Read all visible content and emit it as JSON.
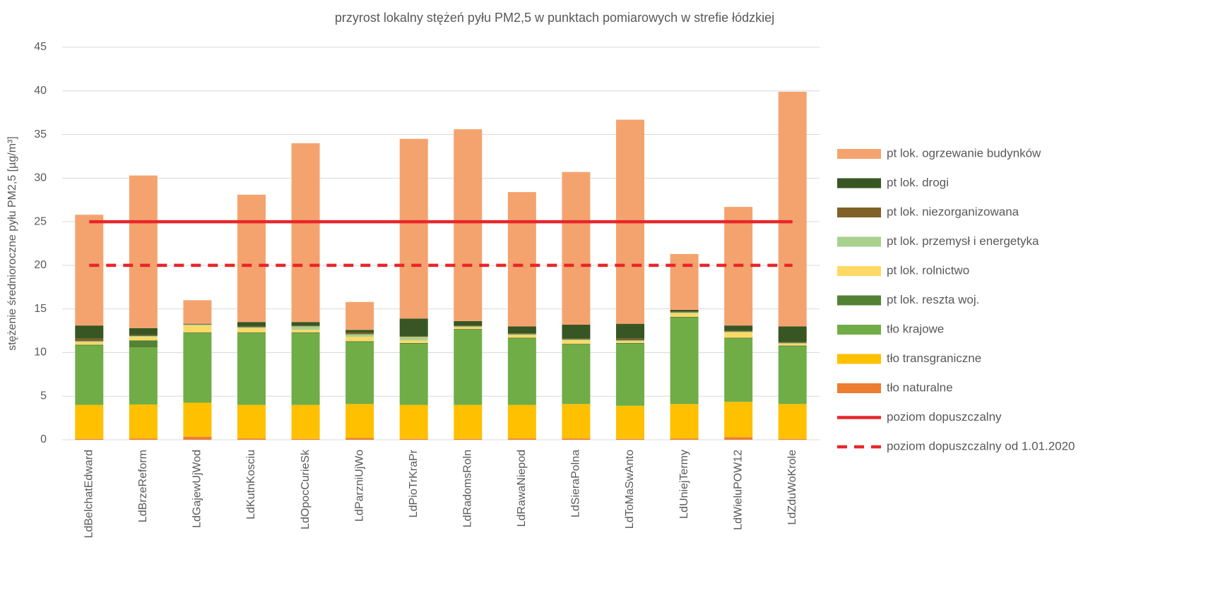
{
  "chart_data": {
    "type": "stacked_bar",
    "title": "przyrost lokalny stężeń pyłu PM2,5 w punktach pomiarowych w strefie łódzkiej",
    "y_label": "stężenie średnioroczne pyłu PM2,5 [µg/m³]",
    "categories": [
      "LdBelchatEdward",
      "LdBrzeReform",
      "LdGajewUjWod",
      "LdKutnKosciu",
      "LdOpocCurieSk",
      "LdParzniUjWo",
      "LdPioTrKraPr",
      "LdRadomsRoln",
      "LdRawaNiepod",
      "LdSieraPolna",
      "LdToMaSwAnto",
      "LdUniejTermy",
      "LdWieluPOW12",
      "LdZduWoKrole"
    ],
    "series": [
      {
        "name": "tło naturalne",
        "color": "#ed7d31",
        "values": [
          0.1,
          0.15,
          0.35,
          0.15,
          0.1,
          0.2,
          0.1,
          0.1,
          0.15,
          0.15,
          0.1,
          0.15,
          0.3,
          0.1
        ]
      },
      {
        "name": "tło transgraniczne",
        "color": "#ffc000",
        "values": [
          3.9,
          3.9,
          3.9,
          3.85,
          3.9,
          3.9,
          3.9,
          3.9,
          3.85,
          3.95,
          3.8,
          3.95,
          4.05,
          4.0
        ]
      },
      {
        "name": "tło krajowe",
        "color": "#70ad47",
        "values": [
          6.8,
          6.55,
          7.95,
          8.2,
          8.2,
          7.1,
          7.0,
          8.6,
          7.6,
          6.8,
          7.1,
          9.9,
          7.25,
          6.6
        ]
      },
      {
        "name": "pt lok. reszta woj.",
        "color": "#548235",
        "values": [
          0.1,
          0.8,
          0.1,
          0.1,
          0.1,
          0.1,
          0.1,
          0.1,
          0.1,
          0.1,
          0.1,
          0.1,
          0.1,
          0.1
        ]
      },
      {
        "name": "pt lok. rolnictwo",
        "color": "#ffd966",
        "values": [
          0.3,
          0.4,
          0.8,
          0.5,
          0.3,
          0.5,
          0.3,
          0.2,
          0.3,
          0.4,
          0.2,
          0.4,
          0.6,
          0.2
        ]
      },
      {
        "name": "pt lok. przemysł i energetyka",
        "color": "#a9d18e",
        "values": [
          0.1,
          0.1,
          0.1,
          0.1,
          0.4,
          0.3,
          0.4,
          0.1,
          0.1,
          0.1,
          0.1,
          0.1,
          0.1,
          0.1
        ]
      },
      {
        "name": "pt lok. niezorganizowana",
        "color": "#7f6027",
        "values": [
          0.3,
          0.1,
          0.05,
          0.1,
          0.1,
          0.2,
          0.1,
          0.1,
          0.1,
          0.1,
          0.2,
          0.1,
          0.1,
          0.1
        ]
      },
      {
        "name": "pt lok. drogi",
        "color": "#375623",
        "values": [
          1.5,
          0.8,
          0.05,
          0.5,
          0.4,
          0.3,
          2.0,
          0.5,
          0.8,
          1.6,
          1.7,
          0.2,
          0.6,
          1.8
        ]
      },
      {
        "name": "pt lok. ogrzewanie budynków",
        "color": "#f4a36e",
        "values": [
          12.7,
          17.5,
          2.7,
          14.6,
          20.5,
          3.2,
          20.6,
          22.0,
          15.4,
          17.5,
          23.4,
          6.4,
          13.6,
          26.9
        ]
      }
    ],
    "reference_lines": [
      {
        "name": "poziom dopuszczalny",
        "color": "#e8262a",
        "value": 25,
        "dashed": false
      },
      {
        "name": "poziom dopuszczalny od 1.01.2020",
        "color": "#e8262a",
        "value": 20,
        "dashed": true
      }
    ],
    "ylim": [
      0,
      45
    ],
    "yticks": [
      0,
      5,
      10,
      15,
      20,
      25,
      30,
      35,
      40,
      45
    ],
    "grid": true,
    "legend": "right"
  }
}
